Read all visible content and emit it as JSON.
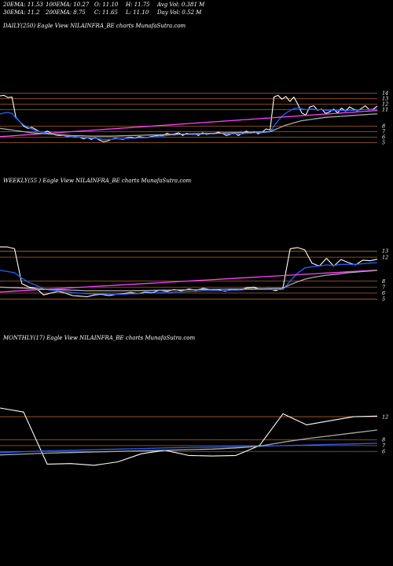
{
  "header": {
    "row1": [
      "20EMA: 11.53",
      "100EMA: 10.27",
      "O: 11.10",
      "H: 11.75",
      "Avg Vol: 0.381 M"
    ],
    "row2": [
      "30EMA: 11.2",
      "200EMA: 8.75",
      "C: 11.65",
      "L: 11.10",
      "Day Vol: 0.52  M"
    ]
  },
  "chart_data": [
    {
      "type": "line",
      "title": "DAILY(250) Eagle  View  NILAINFRA_BE charts MunafaSutra.com",
      "ylim": [
        3.5,
        15.5
      ],
      "ticks": [
        14,
        13,
        12,
        11,
        8,
        7,
        6,
        5
      ],
      "series": [
        {
          "name": "",
          "color": "#ffffff",
          "values": [
            13.5,
            13.6,
            13.2,
            13.3,
            9.6,
            8.8,
            8.0,
            7.6,
            7.8,
            7.4,
            7.0,
            6.9,
            7.1,
            6.7,
            6.4,
            6.3,
            6.3,
            6.1,
            6.2,
            6.0,
            6.0,
            5.7,
            5.9,
            5.6,
            5.9,
            5.5,
            5.2,
            5.3,
            5.6,
            5.8,
            5.7,
            5.6,
            5.9,
            6.0,
            5.8,
            6.1,
            6.0,
            5.9,
            6.1,
            6.2,
            6.4,
            6.3,
            6.7,
            6.5,
            6.6,
            6.8,
            6.3,
            6.7,
            6.5,
            6.6,
            6.3,
            6.8,
            6.5,
            6.6,
            6.7,
            6.9,
            6.7,
            6.3,
            6.5,
            6.8,
            6.3,
            6.7,
            7.1,
            6.8,
            7.0,
            6.6,
            6.9,
            7.5,
            7.3,
            13.3,
            13.6,
            12.9,
            13.4,
            12.5,
            13.3,
            12.0,
            10.4,
            10.0,
            11.5,
            11.7,
            10.9,
            11.1,
            10.3,
            10.6,
            11.1,
            10.4,
            11.3,
            10.7,
            11.5,
            11.1,
            10.8,
            11.2,
            11.7,
            11.0,
            11.1,
            11.65
          ]
        },
        {
          "name": "",
          "color": "#2060ff",
          "values": [
            10.2,
            10.4,
            10.5,
            10.3,
            9.5,
            8.8,
            8.2,
            7.8,
            7.5,
            7.2,
            7.0,
            6.9,
            6.8,
            6.6,
            6.5,
            6.4,
            6.3,
            6.2,
            6.2,
            6.1,
            6.0,
            5.9,
            5.9,
            5.8,
            5.8,
            5.7,
            5.6,
            5.6,
            5.6,
            5.7,
            5.7,
            5.7,
            5.8,
            5.8,
            5.8,
            5.9,
            5.9,
            5.9,
            6.0,
            6.1,
            6.2,
            6.2,
            6.3,
            6.4,
            6.4,
            6.5,
            6.5,
            6.5,
            6.5,
            6.5,
            6.5,
            6.6,
            6.6,
            6.6,
            6.6,
            6.7,
            6.7,
            6.6,
            6.6,
            6.6,
            6.6,
            6.6,
            6.7,
            6.7,
            6.8,
            6.8,
            6.8,
            6.9,
            7.0,
            8.0,
            9.0,
            9.8,
            10.4,
            10.8,
            11.2,
            11.3,
            11.2,
            11.0,
            11.1,
            11.1,
            11.0,
            11.0,
            10.9,
            10.9,
            10.9,
            10.8,
            10.9,
            10.8,
            10.9,
            10.9,
            10.9,
            11.0,
            11.0,
            11.0,
            11.0,
            11.1
          ]
        },
        {
          "name": "",
          "color": "#ff40ff",
          "values": [
            6.1,
            6.15,
            6.2,
            6.25,
            6.3,
            6.35,
            6.4,
            6.45,
            6.5,
            6.55,
            6.6,
            6.65,
            6.7,
            6.75,
            6.8,
            6.85,
            6.9,
            6.95,
            7.0,
            7.05,
            7.1,
            7.15,
            7.2,
            7.25,
            7.3,
            7.35,
            7.4,
            7.45,
            7.5,
            7.55,
            7.6,
            7.65,
            7.7,
            7.75,
            7.8,
            7.85,
            7.9,
            7.95,
            8.0,
            8.05,
            8.1,
            8.15,
            8.2,
            8.25,
            8.3,
            8.35,
            8.4,
            8.45,
            8.5,
            8.55,
            8.6,
            8.65,
            8.7,
            8.75,
            8.8,
            8.85,
            8.9,
            8.95,
            9.0,
            9.05,
            9.1,
            9.15,
            9.2,
            9.25,
            9.3,
            9.35,
            9.4,
            9.45,
            9.5,
            9.55,
            9.6,
            9.65,
            9.7,
            9.75,
            9.8,
            9.85,
            9.9,
            9.95,
            10.0,
            10.05,
            10.1,
            10.15,
            10.2,
            10.25,
            10.3,
            10.35,
            10.4,
            10.45,
            10.5,
            10.55,
            10.6,
            10.65,
            10.7,
            10.75,
            10.8,
            10.85
          ]
        },
        {
          "name": "",
          "color": "#aaaaaa",
          "values": [
            7.6,
            7.5,
            7.4,
            7.3,
            7.2,
            7.1,
            7.0,
            6.9,
            6.8,
            6.75,
            6.7,
            6.65,
            6.6,
            6.55,
            6.5,
            6.45,
            6.4,
            6.35,
            6.3,
            6.28,
            6.26,
            6.24,
            6.22,
            6.2,
            6.2,
            6.2,
            6.2,
            6.2,
            6.2,
            6.22,
            6.24,
            6.26,
            6.28,
            6.3,
            6.32,
            6.34,
            6.36,
            6.38,
            6.4,
            6.42,
            6.44,
            6.46,
            6.48,
            6.5,
            6.52,
            6.54,
            6.56,
            6.58,
            6.6,
            6.62,
            6.64,
            6.66,
            6.68,
            6.7,
            6.72,
            6.74,
            6.76,
            6.78,
            6.8,
            6.82,
            6.84,
            6.86,
            6.88,
            6.9,
            6.92,
            6.94,
            6.96,
            6.98,
            7.0,
            7.3,
            7.6,
            7.9,
            8.2,
            8.4,
            8.6,
            8.8,
            9.0,
            9.1,
            9.2,
            9.3,
            9.4,
            9.5,
            9.6,
            9.65,
            9.7,
            9.75,
            9.8,
            9.85,
            9.9,
            9.95,
            10.0,
            10.05,
            10.1,
            10.15,
            10.2,
            10.25
          ]
        }
      ],
      "hlines": [
        {
          "value": 14,
          "color": "#b0602a"
        },
        {
          "value": 13,
          "color": "#b0602a"
        },
        {
          "value": 12,
          "color": "#b0602a"
        },
        {
          "value": 11,
          "color": "#b0602a"
        },
        {
          "value": 8,
          "color": "#b0602a"
        },
        {
          "value": 7,
          "color": "#b0602a"
        },
        {
          "value": 6,
          "color": "#b0602a"
        },
        {
          "value": 5,
          "color": "#b0602a"
        }
      ]
    },
    {
      "type": "line",
      "title": "WEEKLY(55                              ) Eagle  View  NILAINFRA_BE charts MunafaSutra.com",
      "ylim": [
        3.5,
        14.5
      ],
      "ticks": [
        13,
        12,
        8,
        7,
        6,
        5
      ],
      "series": [
        {
          "name": "",
          "color": "#ffffff",
          "values": [
            13.7,
            13.7,
            13.4,
            7.6,
            7.0,
            6.8,
            5.7,
            6.0,
            6.3,
            6.0,
            5.6,
            5.5,
            5.4,
            5.7,
            5.8,
            5.6,
            5.8,
            5.9,
            6.1,
            5.9,
            6.2,
            6.1,
            6.5,
            6.3,
            6.6,
            6.4,
            6.7,
            6.5,
            6.8,
            6.6,
            6.6,
            6.3,
            6.7,
            6.5,
            6.9,
            7.0,
            6.6,
            6.8,
            6.4,
            6.9,
            13.4,
            13.6,
            13.2,
            11.0,
            10.5,
            11.8,
            10.5,
            11.6,
            11.1,
            10.7,
            11.5,
            11.4,
            11.65
          ]
        },
        {
          "name": "",
          "color": "#2060ff",
          "values": [
            9.8,
            9.6,
            9.4,
            8.5,
            7.8,
            7.3,
            6.7,
            6.5,
            6.4,
            6.3,
            6.1,
            6.0,
            5.9,
            5.9,
            5.9,
            5.8,
            5.8,
            5.8,
            5.9,
            5.9,
            6.0,
            6.0,
            6.1,
            6.1,
            6.2,
            6.2,
            6.3,
            6.3,
            6.4,
            6.4,
            6.4,
            6.4,
            6.5,
            6.5,
            6.6,
            6.6,
            6.6,
            6.6,
            6.6,
            6.6,
            8.0,
            9.3,
            10.2,
            10.4,
            10.5,
            10.7,
            10.6,
            10.8,
            10.8,
            10.8,
            10.9,
            11.0,
            11.1
          ]
        },
        {
          "name": "",
          "color": "#ff40ff",
          "values": [
            6.2,
            6.27,
            6.34,
            6.41,
            6.48,
            6.55,
            6.62,
            6.69,
            6.76,
            6.83,
            6.9,
            6.97,
            7.04,
            7.11,
            7.18,
            7.25,
            7.32,
            7.39,
            7.46,
            7.53,
            7.6,
            7.67,
            7.74,
            7.81,
            7.88,
            7.95,
            8.02,
            8.09,
            8.16,
            8.23,
            8.3,
            8.37,
            8.44,
            8.51,
            8.58,
            8.65,
            8.72,
            8.79,
            8.86,
            8.93,
            9.0,
            9.07,
            9.14,
            9.21,
            9.28,
            9.35,
            9.42,
            9.49,
            9.56,
            9.63,
            9.7,
            9.77,
            9.84
          ]
        },
        {
          "name": "",
          "color": "#aaaaaa",
          "values": [
            7.0,
            6.95,
            6.9,
            6.85,
            6.8,
            6.75,
            6.7,
            6.65,
            6.6,
            6.55,
            6.5,
            6.45,
            6.4,
            6.4,
            6.4,
            6.4,
            6.4,
            6.4,
            6.4,
            6.42,
            6.44,
            6.46,
            6.48,
            6.5,
            6.52,
            6.54,
            6.56,
            6.58,
            6.6,
            6.62,
            6.64,
            6.66,
            6.68,
            6.7,
            6.72,
            6.74,
            6.76,
            6.78,
            6.8,
            6.82,
            7.4,
            7.9,
            8.3,
            8.6,
            8.8,
            9.0,
            9.1,
            9.25,
            9.4,
            9.5,
            9.6,
            9.7,
            9.8
          ]
        }
      ],
      "hlines": [
        {
          "value": 13,
          "color": "#b0602a"
        },
        {
          "value": 12,
          "color": "#b0602a"
        },
        {
          "value": 8,
          "color": "#b0602a"
        },
        {
          "value": 7,
          "color": "#b0602a"
        },
        {
          "value": 6,
          "color": "#b0602a"
        },
        {
          "value": 5,
          "color": "#b0602a"
        }
      ]
    },
    {
      "type": "line",
      "title": "MONTHLY(17) Eagle  View  NILAINFRA_BE charts MunafaSutra.com",
      "ylim": [
        2.5,
        15
      ],
      "ticks": [
        12,
        8,
        7,
        6
      ],
      "series": [
        {
          "name": "",
          "color": "#ffffff",
          "values": [
            13.5,
            12.8,
            3.8,
            3.9,
            3.6,
            4.2,
            5.6,
            6.2,
            5.3,
            5.2,
            5.3,
            7.0,
            12.5,
            10.6,
            11.3,
            12.0,
            12.1
          ]
        },
        {
          "name": "",
          "color": "#2060ff",
          "values": [
            5.8,
            5.95,
            6.1,
            6.2,
            6.3,
            6.4,
            6.5,
            6.6,
            6.7,
            6.75,
            6.8,
            6.9,
            7.0,
            7.1,
            7.2,
            7.3,
            7.4
          ]
        },
        {
          "name": "",
          "color": "#aaaaaa",
          "values": [
            5.4,
            5.55,
            5.7,
            5.8,
            5.9,
            6.0,
            6.1,
            6.2,
            6.3,
            6.4,
            6.6,
            6.9,
            7.6,
            8.2,
            8.7,
            9.2,
            9.7
          ]
        }
      ],
      "hlines": [
        {
          "value": 12,
          "color": "#b0602a"
        },
        {
          "value": 8,
          "color": "#b0602a"
        },
        {
          "value": 7,
          "color": "#b0602a"
        },
        {
          "value": 6,
          "color": "#b0602a"
        }
      ]
    }
  ]
}
